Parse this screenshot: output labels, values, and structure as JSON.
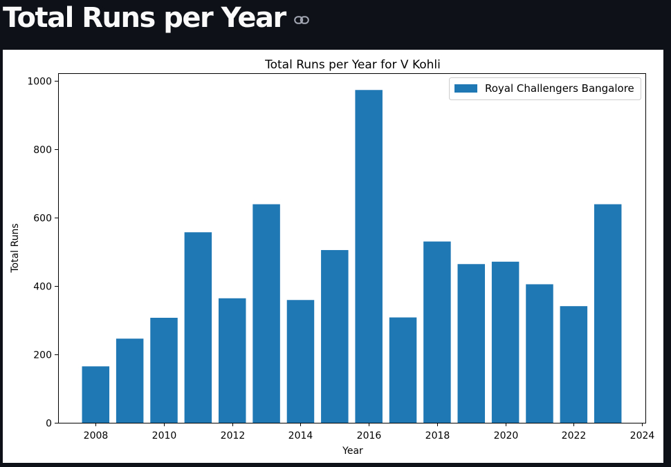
{
  "header": {
    "title": "Total Runs per Year",
    "link_icon": "link-icon"
  },
  "chart_data": {
    "type": "bar",
    "title": "Total Runs per Year for V Kohli",
    "xlabel": "Year",
    "ylabel": "Total Runs",
    "x": [
      2008,
      2009,
      2010,
      2011,
      2012,
      2013,
      2014,
      2015,
      2016,
      2017,
      2018,
      2019,
      2020,
      2021,
      2022,
      2023
    ],
    "series": [
      {
        "name": "Royal Challengers Bangalore",
        "color": "#1f77b4",
        "values": [
          165,
          246,
          307,
          557,
          364,
          639,
          359,
          505,
          973,
          308,
          530,
          464,
          471,
          405,
          341,
          639
        ]
      }
    ],
    "xlim": [
      2006.9,
      2024.1
    ],
    "ylim": [
      0,
      1022
    ],
    "xticks": [
      2008,
      2010,
      2012,
      2014,
      2016,
      2018,
      2020,
      2022,
      2024
    ],
    "yticks": [
      0,
      200,
      400,
      600,
      800,
      1000
    ],
    "grid": false,
    "legend_position": "top-right"
  }
}
